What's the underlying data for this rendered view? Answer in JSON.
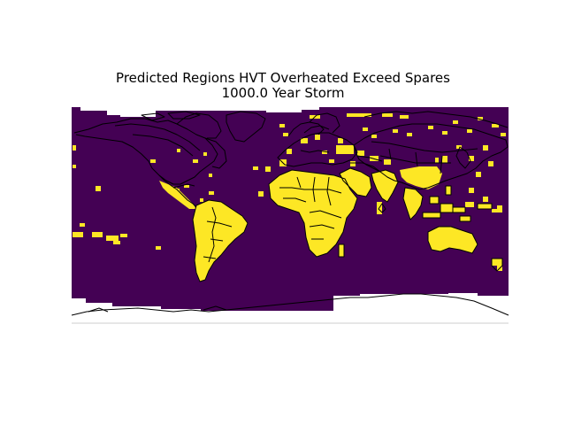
{
  "figure": {
    "title_line1": "Predicted Regions HVT Overheated Exceed Spares",
    "title_line2": "1000.0 Year Storm"
  },
  "map_data": {
    "projection": "plate-carree",
    "extent_lon": [
      -180,
      180
    ],
    "extent_lat": [
      -90,
      90
    ],
    "colormap": "viridis",
    "colors": {
      "background_value": "#440154",
      "flagged_value": "#fde725",
      "coastline": "#000000"
    }
  }
}
